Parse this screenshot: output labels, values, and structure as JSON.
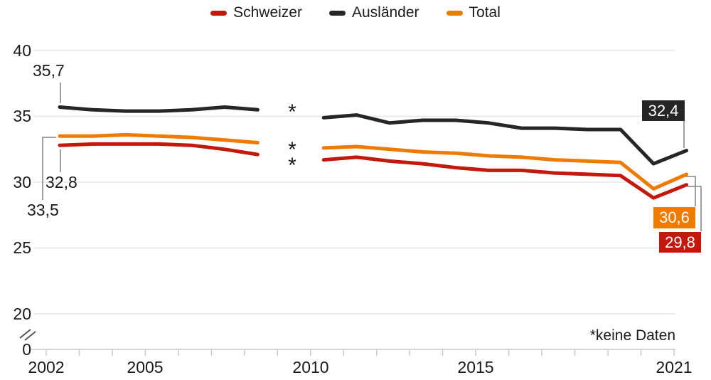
{
  "legend": {
    "items": [
      {
        "label": "Schweizer",
        "color": "#c2190c"
      },
      {
        "label": "Ausländer",
        "color": "#262626"
      },
      {
        "label": "Total",
        "color": "#ee7b00"
      }
    ]
  },
  "chart_data": {
    "type": "line",
    "x": [
      2002,
      2003,
      2004,
      2005,
      2006,
      2007,
      2008,
      2009,
      2010,
      2011,
      2012,
      2013,
      2014,
      2015,
      2016,
      2017,
      2018,
      2019,
      2020,
      2021
    ],
    "series": [
      {
        "name": "Schweizer",
        "color": "#c2190c",
        "values": [
          32.8,
          32.9,
          32.9,
          32.9,
          32.8,
          32.5,
          32.1,
          null,
          31.7,
          31.9,
          31.6,
          31.4,
          31.1,
          30.9,
          30.9,
          30.7,
          30.6,
          30.5,
          28.8,
          29.8
        ]
      },
      {
        "name": "Ausländer",
        "color": "#262626",
        "values": [
          35.7,
          35.5,
          35.4,
          35.4,
          35.5,
          35.7,
          35.5,
          null,
          34.9,
          35.1,
          34.5,
          34.7,
          34.7,
          34.5,
          34.1,
          34.1,
          34.0,
          34.0,
          31.4,
          32.4
        ]
      },
      {
        "name": "Total",
        "color": "#ee7b00",
        "values": [
          33.5,
          33.5,
          33.6,
          33.5,
          33.4,
          33.2,
          33.0,
          null,
          32.6,
          32.7,
          32.5,
          32.3,
          32.2,
          32.0,
          31.9,
          31.7,
          31.6,
          31.5,
          29.5,
          30.6
        ]
      }
    ],
    "missing_year": 2009,
    "missing_marker": "*",
    "footnote": "*keine Daten",
    "y_axis": {
      "ticks": [
        40,
        35,
        30,
        25,
        20,
        0
      ],
      "tick_labels": [
        "40",
        "35",
        "30",
        "25",
        "20",
        "0"
      ],
      "broken_between": [
        0,
        20
      ],
      "ylim": [
        20,
        40
      ],
      "grid": true
    },
    "x_axis": {
      "tick_years": [
        2002,
        2003,
        2004,
        2005,
        2006,
        2007,
        2008,
        2009,
        2010,
        2011,
        2012,
        2013,
        2014,
        2015,
        2016,
        2017,
        2018,
        2019,
        2020,
        2021
      ],
      "labels": [
        "2002",
        "2005",
        "2010",
        "2015",
        "2021"
      ],
      "labeled_years": [
        2002,
        2005,
        2010,
        2015,
        2021
      ]
    },
    "annotations": {
      "start_auslaender": "35,7",
      "start_schweizer": "32,8",
      "start_total": "33,5",
      "end_auslaender": "32,4",
      "end_total": "30,6",
      "end_schweizer": "29,8"
    }
  }
}
